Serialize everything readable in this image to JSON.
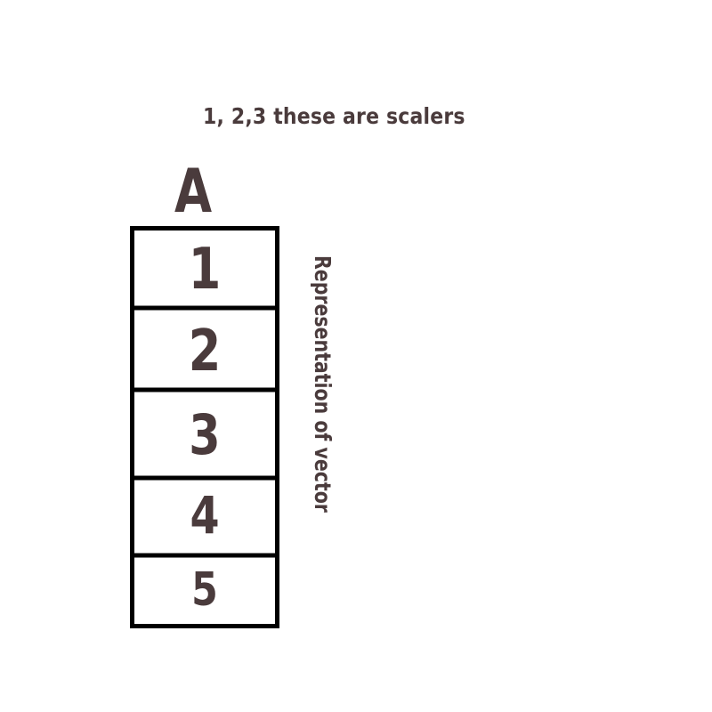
{
  "caption": "1, 2,3 these are scalers",
  "vector": {
    "name": "A",
    "elements": [
      "1",
      "2",
      "3",
      "4",
      "5"
    ],
    "side_label": "Representation of vector"
  },
  "colors": {
    "text": "#4a3b3c",
    "box_stroke": "#000000",
    "background": "#ffffff"
  }
}
